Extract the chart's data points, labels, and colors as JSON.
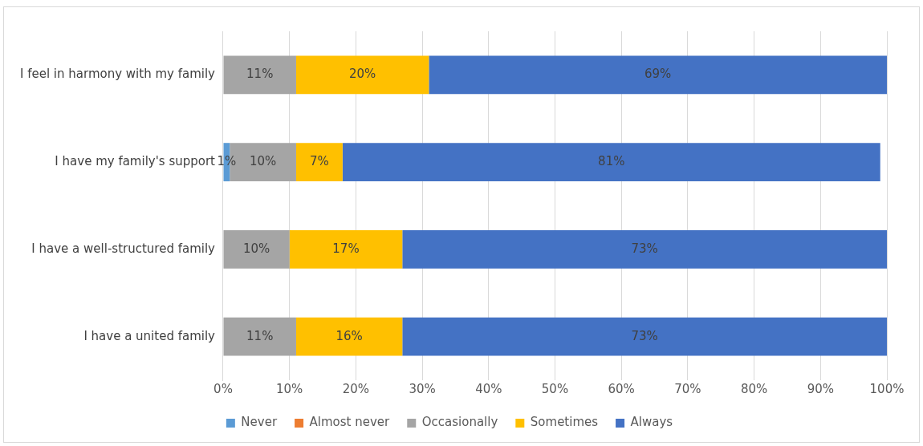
{
  "chart_data": {
    "type": "bar",
    "orientation": "horizontal",
    "stacked": true,
    "categories": [
      "I feel in harmony with my family",
      "I have my family's support",
      "I have a well-structured family",
      "I have a united family"
    ],
    "series": [
      {
        "name": "Never",
        "color": "#5b9bd5",
        "values": [
          0,
          1,
          0,
          0
        ],
        "value_labels": [
          null,
          "1%",
          null,
          null
        ]
      },
      {
        "name": "Almost never",
        "color": "#ed7d31",
        "values": [
          0,
          0,
          0,
          0
        ],
        "value_labels": [
          null,
          null,
          null,
          null
        ]
      },
      {
        "name": "Occasionally",
        "color": "#a5a5a5",
        "values": [
          11,
          10,
          10,
          11
        ],
        "value_labels": [
          "11%",
          "10%",
          "10%",
          "11%"
        ]
      },
      {
        "name": "Sometimes",
        "color": "#ffc000",
        "values": [
          20,
          7,
          17,
          16
        ],
        "value_labels": [
          "20%",
          "7%",
          "17%",
          "16%"
        ]
      },
      {
        "name": "Always",
        "color": "#4472c4",
        "values": [
          69,
          81,
          73,
          73
        ],
        "value_labels": [
          "69%",
          "81%",
          "73%",
          "73%"
        ]
      }
    ],
    "xlim": [
      0,
      100
    ],
    "xticks": [
      {
        "value": 0,
        "label": "0%"
      },
      {
        "value": 10,
        "label": "10%"
      },
      {
        "value": 20,
        "label": "20%"
      },
      {
        "value": 30,
        "label": "30%"
      },
      {
        "value": 40,
        "label": "40%"
      },
      {
        "value": 50,
        "label": "50%"
      },
      {
        "value": 60,
        "label": "60%"
      },
      {
        "value": 70,
        "label": "70%"
      },
      {
        "value": 80,
        "label": "80%"
      },
      {
        "value": 90,
        "label": "90%"
      },
      {
        "value": 100,
        "label": "100%"
      }
    ],
    "grid": "x",
    "legend": "bottom"
  }
}
